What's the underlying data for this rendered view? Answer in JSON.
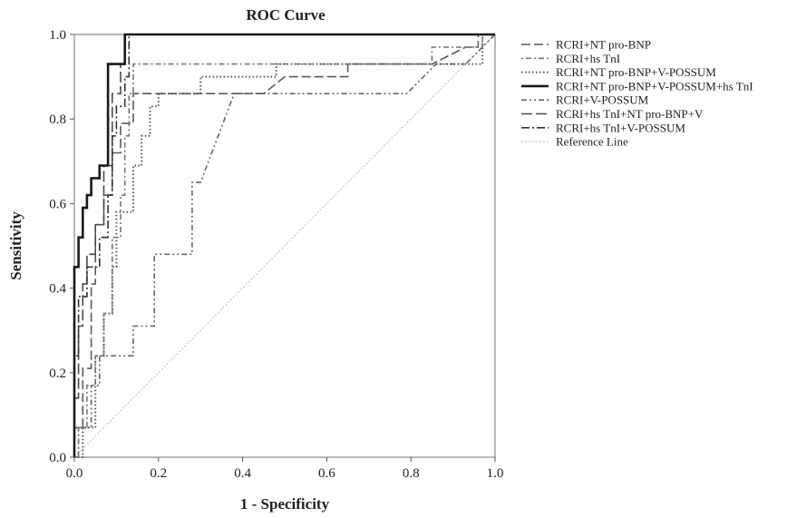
{
  "chart_data": {
    "type": "line",
    "title": "ROC Curve",
    "xlabel": "1 - Specificity",
    "ylabel": "Sensitivity",
    "xlim": [
      0.0,
      1.0
    ],
    "ylim": [
      0.0,
      1.0
    ],
    "x_ticks": [
      "0.0",
      "0.2",
      "0.4",
      "0.6",
      "0.8",
      "1.0"
    ],
    "y_ticks": [
      "0.0",
      "0.2",
      "0.4",
      "0.6",
      "0.8",
      "1.0"
    ],
    "grid": false,
    "legend_position": "right",
    "series": [
      {
        "name": "RCRI+NT pro-BNP",
        "color": "#5a5a5a",
        "dash": "10,4",
        "width": 1.6,
        "points": [
          [
            0,
            0
          ],
          [
            0,
            0.07
          ],
          [
            0.02,
            0.07
          ],
          [
            0.02,
            0.21
          ],
          [
            0.04,
            0.21
          ],
          [
            0.04,
            0.41
          ],
          [
            0.05,
            0.41
          ],
          [
            0.05,
            0.55
          ],
          [
            0.07,
            0.55
          ],
          [
            0.07,
            0.62
          ],
          [
            0.09,
            0.62
          ],
          [
            0.09,
            0.72
          ],
          [
            0.11,
            0.72
          ],
          [
            0.11,
            0.79
          ],
          [
            0.14,
            0.79
          ],
          [
            0.14,
            0.86
          ],
          [
            0.18,
            0.86
          ],
          [
            0.25,
            0.86
          ],
          [
            0.45,
            0.86
          ],
          [
            0.5,
            0.9
          ],
          [
            0.65,
            0.9
          ],
          [
            0.65,
            0.93
          ],
          [
            0.85,
            0.93
          ],
          [
            0.93,
            0.97
          ],
          [
            0.96,
            0.97
          ],
          [
            0.96,
            1.0
          ],
          [
            1.0,
            1.0
          ]
        ]
      },
      {
        "name": "RCRI+hs TnI",
        "color": "#777777",
        "dash": "2,3,6,3",
        "width": 1.6,
        "points": [
          [
            0,
            0
          ],
          [
            0.01,
            0
          ],
          [
            0.01,
            0.07
          ],
          [
            0.03,
            0.07
          ],
          [
            0.03,
            0.17
          ],
          [
            0.05,
            0.17
          ],
          [
            0.05,
            0.24
          ],
          [
            0.07,
            0.24
          ],
          [
            0.07,
            0.34
          ],
          [
            0.09,
            0.34
          ],
          [
            0.09,
            0.52
          ],
          [
            0.11,
            0.52
          ],
          [
            0.11,
            0.62
          ],
          [
            0.12,
            0.62
          ],
          [
            0.12,
            0.76
          ],
          [
            0.13,
            0.76
          ],
          [
            0.13,
            0.86
          ],
          [
            0.14,
            0.86
          ],
          [
            0.14,
            0.93
          ],
          [
            0.2,
            0.93
          ],
          [
            0.45,
            0.93
          ],
          [
            0.8,
            0.93
          ],
          [
            0.85,
            0.93
          ],
          [
            0.85,
            0.97
          ],
          [
            0.97,
            0.97
          ],
          [
            0.97,
            1.0
          ],
          [
            1.0,
            1.0
          ]
        ]
      },
      {
        "name": "RCRI+NT pro-BNP+V-POSSUM",
        "color": "#555555",
        "dash": "1.5,2.5",
        "width": 2,
        "points": [
          [
            0,
            0
          ],
          [
            0.02,
            0
          ],
          [
            0.02,
            0.07
          ],
          [
            0.05,
            0.07
          ],
          [
            0.05,
            0.24
          ],
          [
            0.07,
            0.24
          ],
          [
            0.07,
            0.34
          ],
          [
            0.09,
            0.34
          ],
          [
            0.09,
            0.45
          ],
          [
            0.1,
            0.45
          ],
          [
            0.1,
            0.58
          ],
          [
            0.14,
            0.58
          ],
          [
            0.14,
            0.69
          ],
          [
            0.16,
            0.69
          ],
          [
            0.16,
            0.76
          ],
          [
            0.18,
            0.76
          ],
          [
            0.18,
            0.83
          ],
          [
            0.2,
            0.83
          ],
          [
            0.2,
            0.86
          ],
          [
            0.3,
            0.86
          ],
          [
            0.3,
            0.9
          ],
          [
            0.48,
            0.9
          ],
          [
            0.48,
            0.93
          ],
          [
            0.85,
            0.93
          ],
          [
            0.97,
            0.93
          ],
          [
            0.97,
            1.0
          ],
          [
            1.0,
            1.0
          ]
        ]
      },
      {
        "name": "RCRI+NT pro-BNP+V-POSSUM+hs TnI",
        "color": "#1a1a1a",
        "dash": "",
        "width": 2.6,
        "points": [
          [
            0,
            0
          ],
          [
            0,
            0.45
          ],
          [
            0.01,
            0.45
          ],
          [
            0.01,
            0.52
          ],
          [
            0.02,
            0.52
          ],
          [
            0.02,
            0.59
          ],
          [
            0.03,
            0.59
          ],
          [
            0.03,
            0.62
          ],
          [
            0.04,
            0.62
          ],
          [
            0.04,
            0.66
          ],
          [
            0.06,
            0.66
          ],
          [
            0.06,
            0.69
          ],
          [
            0.08,
            0.69
          ],
          [
            0.08,
            0.93
          ],
          [
            0.1,
            0.93
          ],
          [
            0.12,
            0.93
          ],
          [
            0.12,
            1.0
          ],
          [
            1.0,
            1.0
          ]
        ]
      },
      {
        "name": "RCRI+V-POSSUM",
        "color": "#666666",
        "dash": "6,3,2,3,2,3",
        "width": 1.6,
        "points": [
          [
            0,
            0
          ],
          [
            0.01,
            0
          ],
          [
            0.01,
            0.07
          ],
          [
            0.04,
            0.07
          ],
          [
            0.04,
            0.17
          ],
          [
            0.06,
            0.17
          ],
          [
            0.06,
            0.24
          ],
          [
            0.14,
            0.24
          ],
          [
            0.14,
            0.31
          ],
          [
            0.19,
            0.31
          ],
          [
            0.19,
            0.48
          ],
          [
            0.23,
            0.48
          ],
          [
            0.28,
            0.48
          ],
          [
            0.28,
            0.65
          ],
          [
            0.3,
            0.65
          ],
          [
            0.38,
            0.86
          ],
          [
            0.45,
            0.86
          ],
          [
            0.79,
            0.86
          ],
          [
            0.86,
            0.93
          ],
          [
            0.9,
            0.93
          ],
          [
            0.93,
            0.93
          ],
          [
            0.97,
            0.97
          ],
          [
            1.0,
            1.0
          ]
        ]
      },
      {
        "name": "RCRI+hs TnI+NT pro-BNP+V",
        "color": "#4a4a4a",
        "dash": "12,4",
        "width": 1.6,
        "points": [
          [
            0,
            0
          ],
          [
            0,
            0.14
          ],
          [
            0.01,
            0.14
          ],
          [
            0.01,
            0.31
          ],
          [
            0.02,
            0.31
          ],
          [
            0.02,
            0.41
          ],
          [
            0.03,
            0.41
          ],
          [
            0.03,
            0.48
          ],
          [
            0.05,
            0.48
          ],
          [
            0.05,
            0.55
          ],
          [
            0.07,
            0.55
          ],
          [
            0.07,
            0.69
          ],
          [
            0.09,
            0.69
          ],
          [
            0.09,
            0.86
          ],
          [
            0.11,
            0.86
          ],
          [
            0.11,
            0.93
          ],
          [
            0.12,
            0.93
          ],
          [
            0.12,
            1.0
          ],
          [
            1.0,
            1.0
          ]
        ]
      },
      {
        "name": "RCRI+hs TnI+V-POSSUM",
        "color": "#303030",
        "dash": "9,3,2,3",
        "width": 1.6,
        "points": [
          [
            0,
            0
          ],
          [
            0,
            0.24
          ],
          [
            0.01,
            0.24
          ],
          [
            0.01,
            0.38
          ],
          [
            0.03,
            0.38
          ],
          [
            0.03,
            0.45
          ],
          [
            0.06,
            0.45
          ],
          [
            0.06,
            0.52
          ],
          [
            0.08,
            0.52
          ],
          [
            0.08,
            0.62
          ],
          [
            0.09,
            0.62
          ],
          [
            0.09,
            0.76
          ],
          [
            0.1,
            0.76
          ],
          [
            0.1,
            0.83
          ],
          [
            0.12,
            0.83
          ],
          [
            0.12,
            0.9
          ],
          [
            0.13,
            0.9
          ],
          [
            0.13,
            1.0
          ],
          [
            1.0,
            1.0
          ]
        ]
      },
      {
        "name": "Reference Line",
        "color": "#c8c8c8",
        "dash": "2,2",
        "width": 1.3,
        "points": [
          [
            0,
            0
          ],
          [
            1,
            1
          ]
        ]
      }
    ]
  }
}
